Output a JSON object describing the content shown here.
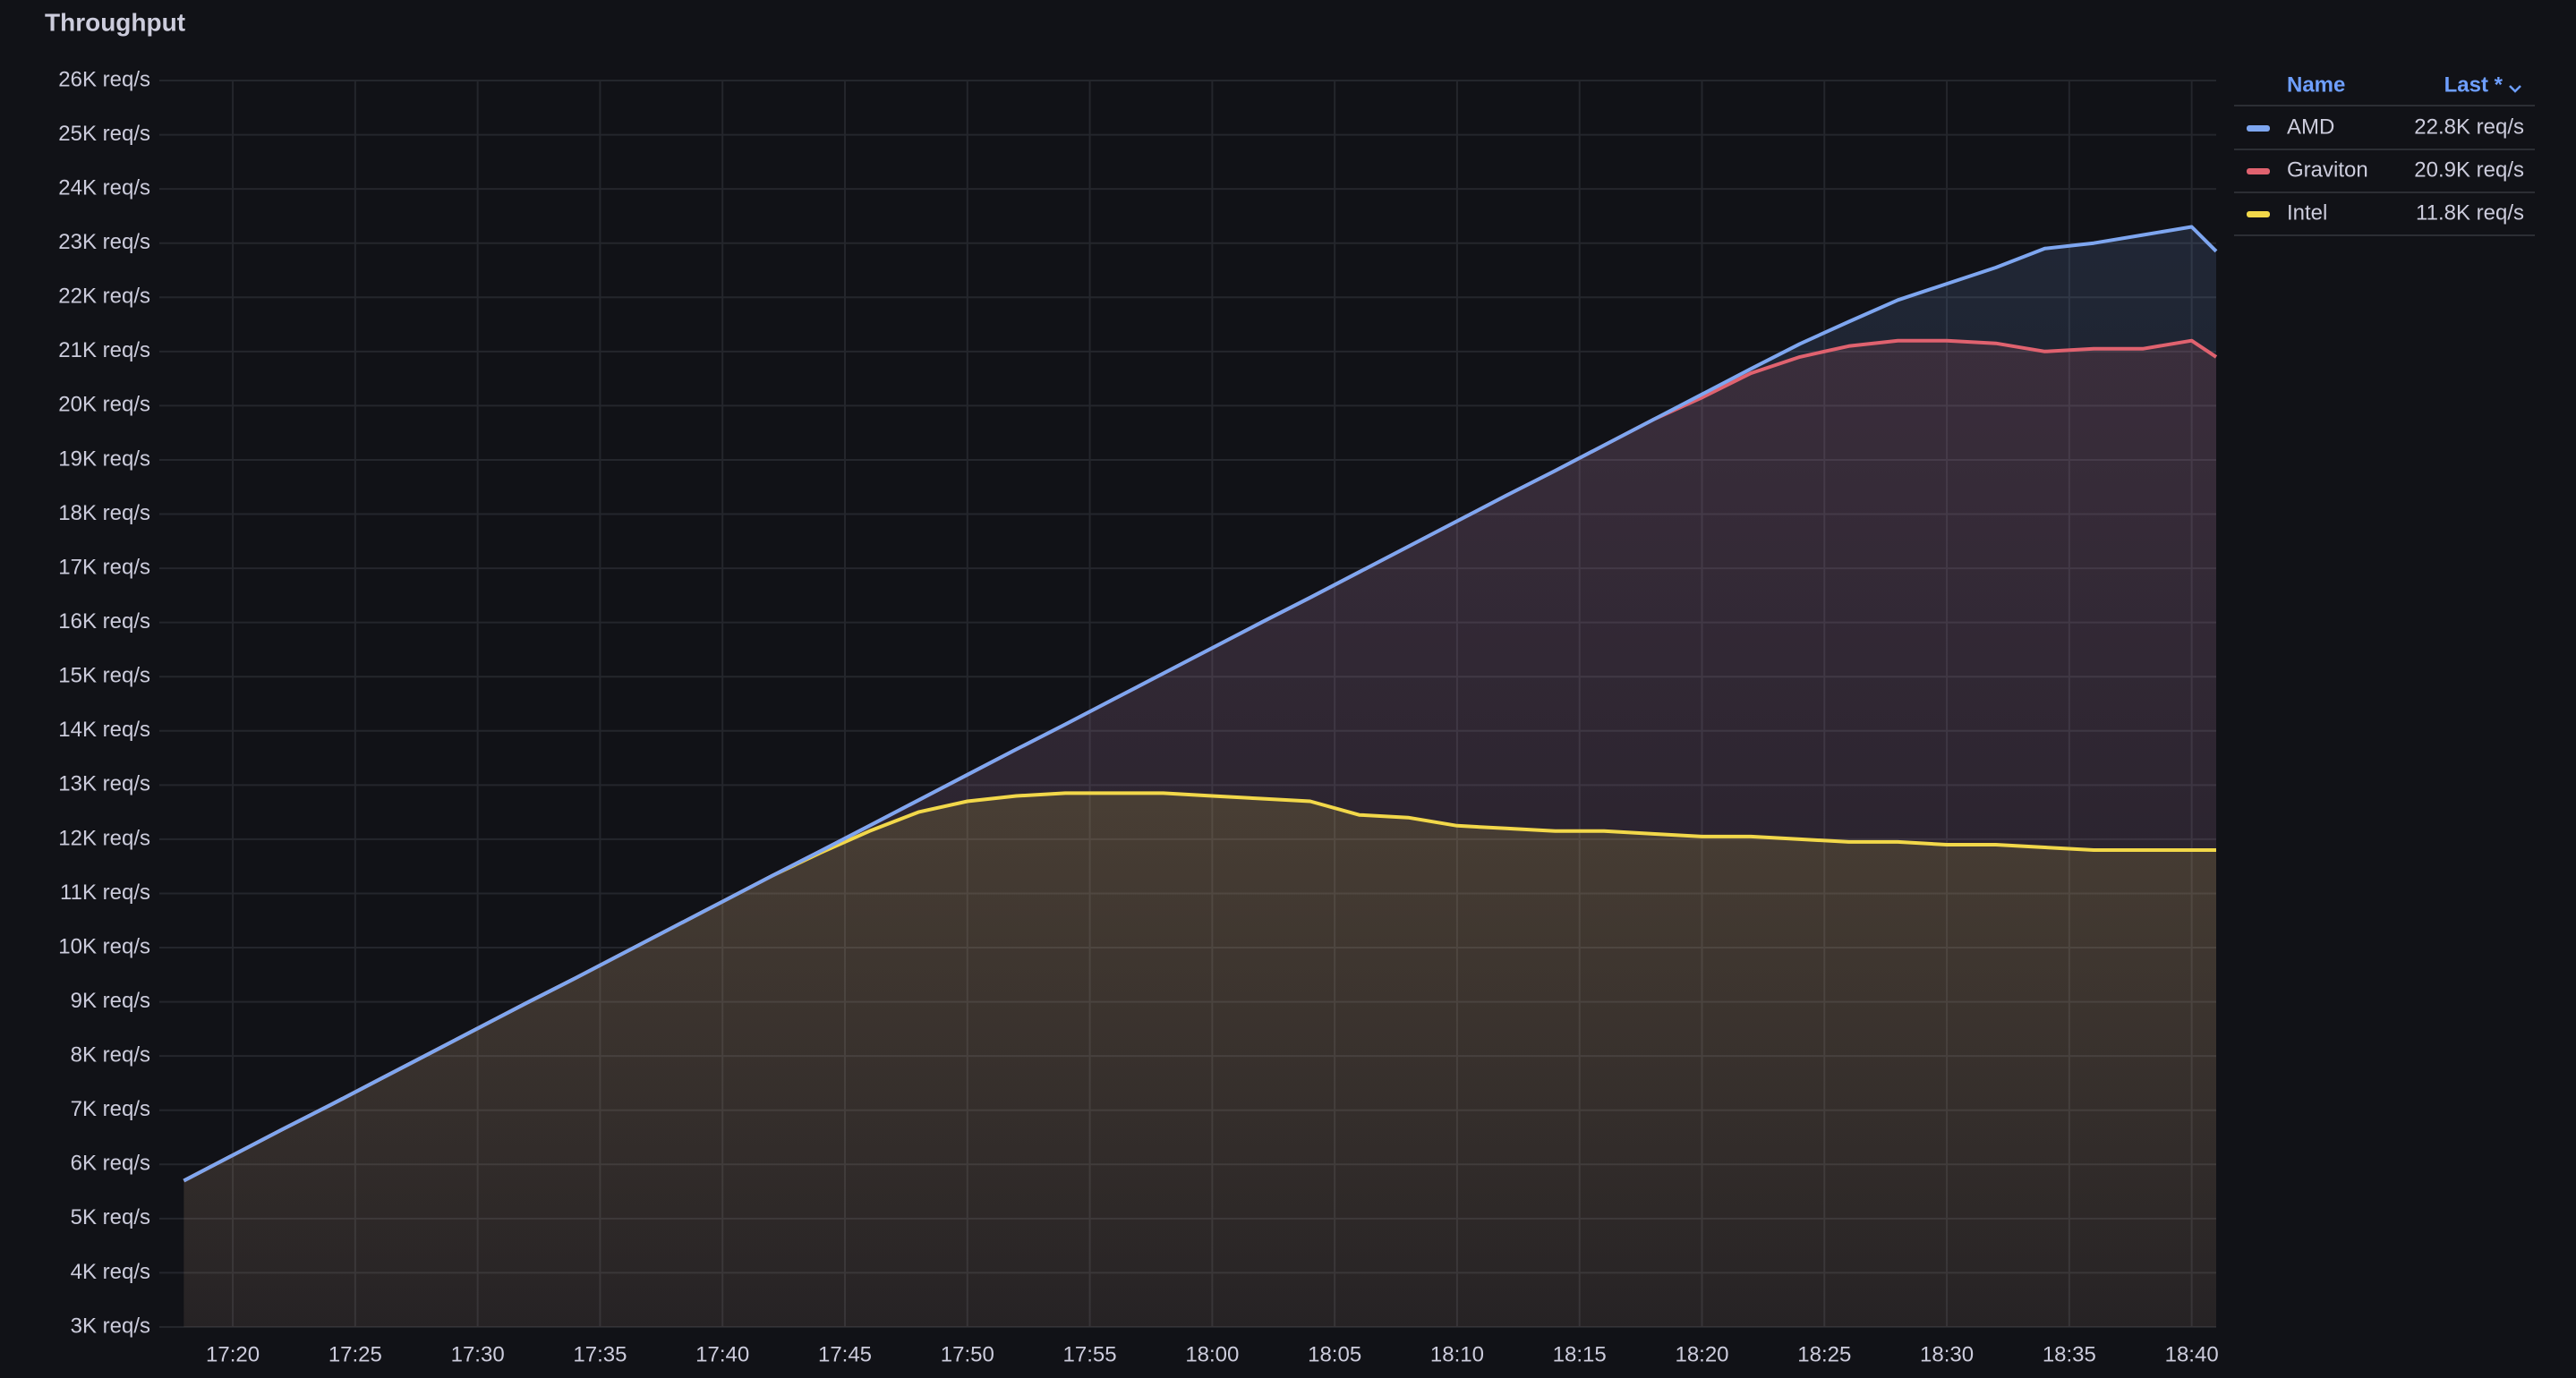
{
  "chart_data": {
    "type": "line",
    "title": "Throughput",
    "x": [
      "17:18",
      "17:20",
      "17:22",
      "17:24",
      "17:26",
      "17:28",
      "17:30",
      "17:32",
      "17:34",
      "17:36",
      "17:38",
      "17:40",
      "17:42",
      "17:44",
      "17:46",
      "17:48",
      "17:50",
      "17:52",
      "17:54",
      "17:56",
      "17:58",
      "18:00",
      "18:02",
      "18:04",
      "18:06",
      "18:08",
      "18:10",
      "18:12",
      "18:14",
      "18:16",
      "18:18",
      "18:20",
      "18:22",
      "18:24",
      "18:26",
      "18:28",
      "18:30",
      "18:32",
      "18:34",
      "18:36",
      "18:38",
      "18:40",
      "18:41"
    ],
    "series": [
      {
        "name": "AMD",
        "color": "#7ea6f0",
        "last_label": "22.8K req/s",
        "values": [
          5700,
          6170,
          6640,
          7100,
          7570,
          8040,
          8510,
          8980,
          9440,
          9910,
          10380,
          10850,
          11320,
          11780,
          12250,
          12720,
          13190,
          13660,
          14120,
          14590,
          15060,
          15530,
          16000,
          16460,
          16930,
          17400,
          17870,
          18340,
          18800,
          19270,
          19740,
          20210,
          20680,
          21140,
          21550,
          21950,
          22250,
          22550,
          22900,
          23000,
          23150,
          23300,
          22850
        ]
      },
      {
        "name": "Graviton",
        "color": "#e0626f",
        "last_label": "20.9K req/s",
        "values": [
          5700,
          6170,
          6640,
          7100,
          7570,
          8040,
          8510,
          8980,
          9440,
          9910,
          10380,
          10850,
          11320,
          11780,
          12250,
          12720,
          13190,
          13660,
          14120,
          14590,
          15060,
          15530,
          16000,
          16460,
          16930,
          17400,
          17870,
          18340,
          18800,
          19270,
          19740,
          20150,
          20600,
          20900,
          21100,
          21200,
          21200,
          21150,
          21000,
          21050,
          21050,
          21200,
          20900
        ]
      },
      {
        "name": "Intel",
        "color": "#f2d84a",
        "last_label": "11.8K req/s",
        "values": [
          5700,
          6170,
          6640,
          7100,
          7570,
          8040,
          8510,
          8980,
          9440,
          9910,
          10380,
          10850,
          11320,
          11750,
          12150,
          12500,
          12700,
          12800,
          12850,
          12850,
          12850,
          12800,
          12750,
          12700,
          12450,
          12400,
          12250,
          12200,
          12150,
          12150,
          12100,
          12050,
          12050,
          12000,
          11950,
          11950,
          11900,
          11900,
          11850,
          11800,
          11800,
          11800,
          11800
        ]
      }
    ],
    "xlim": [
      "17:17",
      "18:41"
    ],
    "xticks": [
      "17:20",
      "17:25",
      "17:30",
      "17:35",
      "17:40",
      "17:45",
      "17:50",
      "17:55",
      "18:00",
      "18:05",
      "18:10",
      "18:15",
      "18:20",
      "18:25",
      "18:30",
      "18:35",
      "18:40"
    ],
    "ylim": [
      3000,
      26000
    ],
    "yticks": [
      {
        "value": 3000,
        "label": "3K req/s"
      },
      {
        "value": 4000,
        "label": "4K req/s"
      },
      {
        "value": 5000,
        "label": "5K req/s"
      },
      {
        "value": 6000,
        "label": "6K req/s"
      },
      {
        "value": 7000,
        "label": "7K req/s"
      },
      {
        "value": 8000,
        "label": "8K req/s"
      },
      {
        "value": 9000,
        "label": "9K req/s"
      },
      {
        "value": 10000,
        "label": "10K req/s"
      },
      {
        "value": 11000,
        "label": "11K req/s"
      },
      {
        "value": 12000,
        "label": "12K req/s"
      },
      {
        "value": 13000,
        "label": "13K req/s"
      },
      {
        "value": 14000,
        "label": "14K req/s"
      },
      {
        "value": 15000,
        "label": "15K req/s"
      },
      {
        "value": 16000,
        "label": "16K req/s"
      },
      {
        "value": 17000,
        "label": "17K req/s"
      },
      {
        "value": 18000,
        "label": "18K req/s"
      },
      {
        "value": 19000,
        "label": "19K req/s"
      },
      {
        "value": 20000,
        "label": "20K req/s"
      },
      {
        "value": 21000,
        "label": "21K req/s"
      },
      {
        "value": 22000,
        "label": "22K req/s"
      },
      {
        "value": 23000,
        "label": "23K req/s"
      },
      {
        "value": 24000,
        "label": "24K req/s"
      },
      {
        "value": 25000,
        "label": "25K req/s"
      },
      {
        "value": 26000,
        "label": "26K req/s"
      }
    ],
    "grid": true,
    "legend": {
      "name_header": "Name",
      "value_header": "Last *",
      "position": "right"
    }
  }
}
